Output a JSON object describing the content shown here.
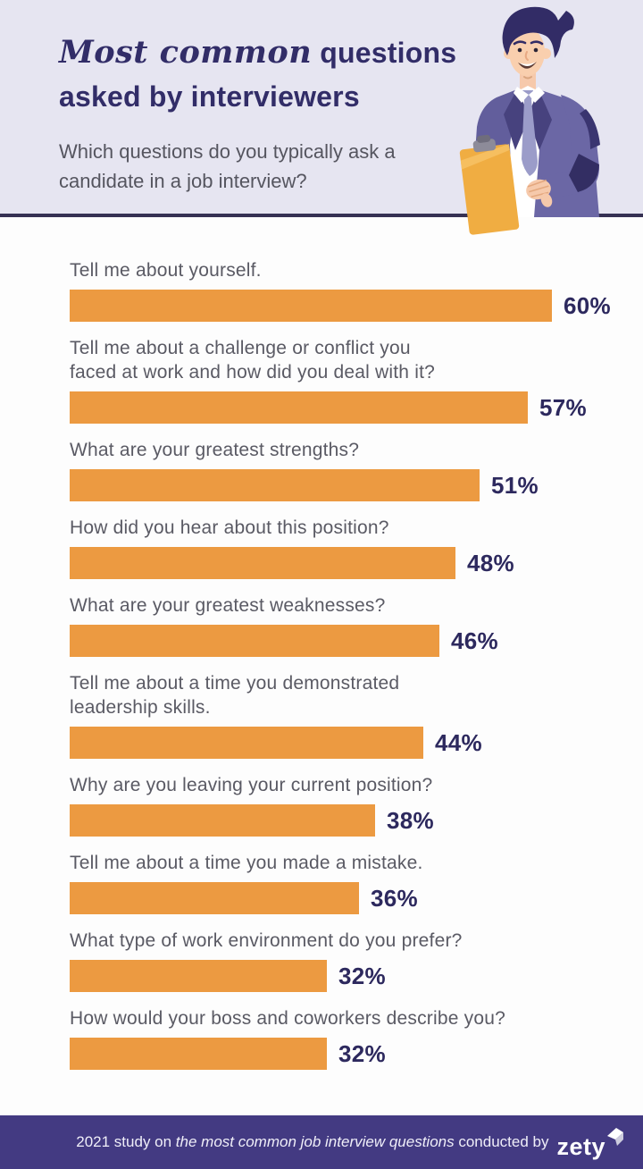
{
  "header": {
    "title_script": "Most common",
    "title_rest": " questions asked by interviewers",
    "subtitle": "Which questions do you typically ask a\ncandidate in a job interview?"
  },
  "chart_data": {
    "type": "bar",
    "orientation": "horizontal",
    "title": "Most common questions asked by interviewers",
    "subtitle": "Which questions do you typically ask a candidate in a job interview?",
    "categories": [
      "Tell me about yourself.",
      "Tell me about a challenge or conflict you\nfaced at work and how did you deal with it?",
      "What are your greatest strengths?",
      "How did you hear about this position?",
      "What are your greatest weaknesses?",
      "Tell me about a time you demonstrated\nleadership skills.",
      "Why are you leaving your current position?",
      "Tell me about a time you made a mistake.",
      "What type of work environment do you prefer?",
      "How would your boss and coworkers describe you?"
    ],
    "values": [
      60,
      57,
      51,
      48,
      46,
      44,
      38,
      36,
      32,
      32
    ],
    "unit": "%",
    "bar_color": "#ec9a41",
    "value_label_color": "#2d295e",
    "xlim": [
      0,
      100
    ],
    "grid": false,
    "legend": false,
    "source_note": "2021 study on the most common job interview questions conducted by zety"
  },
  "footer": {
    "prefix": "2021 study on ",
    "italic": "the most common job interview questions",
    "suffix": " conducted by",
    "brand": "zety"
  },
  "illustration": {
    "name": "interviewer-with-clipboard"
  },
  "colors": {
    "header_bg": "#e6e5f1",
    "divider": "#363153",
    "title": "#322d68",
    "subtitle": "#55555f",
    "question_text": "#5a5a64",
    "footer_bg": "#433a82"
  }
}
